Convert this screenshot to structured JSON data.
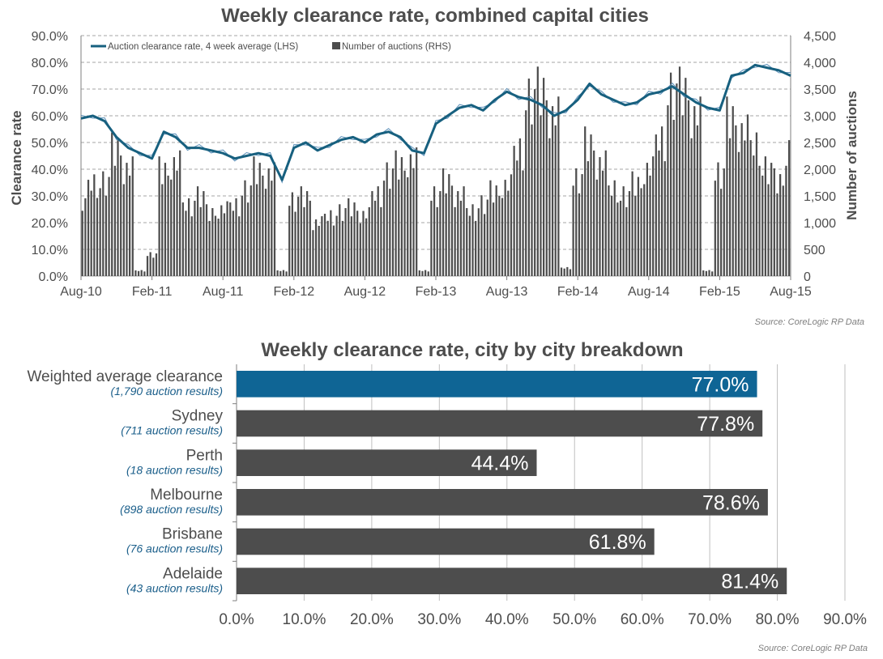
{
  "colors": {
    "line": "#17607f",
    "line_thin": "#5b8fb8",
    "bars": "#4d4d4d",
    "highlight": "#0f6595",
    "grid": "#a6a6a6",
    "subtitle": "#1a5e8a"
  },
  "chart_data": [
    {
      "type": "line",
      "title": "Weekly clearance rate, combined capital cities",
      "ylabel": "Clearance rate",
      "y2label": "Number of auctions",
      "x_ticks": [
        "Aug-10",
        "Feb-11",
        "Aug-11",
        "Feb-12",
        "Aug-12",
        "Feb-13",
        "Aug-13",
        "Feb-14",
        "Aug-14",
        "Feb-15",
        "Aug-15"
      ],
      "y_ticks": [
        "0.0%",
        "10.0%",
        "20.0%",
        "30.0%",
        "40.0%",
        "50.0%",
        "60.0%",
        "70.0%",
        "80.0%",
        "90.0%"
      ],
      "y2_ticks": [
        "0",
        "500",
        "1,000",
        "1,500",
        "2,000",
        "2,500",
        "3,000",
        "3,500",
        "4,000",
        "4,500"
      ],
      "ylim": [
        0,
        90
      ],
      "y2lim": [
        0,
        4500
      ],
      "grid": true,
      "legend_position": "top-left",
      "series": [
        {
          "name": "Auction clearance rate, 4 week average (LHS)",
          "axis": "left",
          "kind": "line",
          "points": [
            [
              "Aug-10",
              59
            ],
            [
              "Sep-10",
              60
            ],
            [
              "Oct-10",
              58
            ],
            [
              "Nov-10",
              52
            ],
            [
              "Dec-10",
              48
            ],
            [
              "Jan-11",
              46
            ],
            [
              "Feb-11",
              44
            ],
            [
              "Mar-11",
              54
            ],
            [
              "Apr-11",
              52
            ],
            [
              "May-11",
              48
            ],
            [
              "Jun-11",
              48
            ],
            [
              "Jul-11",
              47
            ],
            [
              "Aug-11",
              46
            ],
            [
              "Sep-11",
              44
            ],
            [
              "Oct-11",
              45
            ],
            [
              "Nov-11",
              46
            ],
            [
              "Dec-11",
              45
            ],
            [
              "Jan-12",
              36
            ],
            [
              "Feb-12",
              48
            ],
            [
              "Mar-12",
              50
            ],
            [
              "Apr-12",
              47
            ],
            [
              "May-12",
              49
            ],
            [
              "Jun-12",
              51
            ],
            [
              "Jul-12",
              52
            ],
            [
              "Aug-12",
              50
            ],
            [
              "Sep-12",
              53
            ],
            [
              "Oct-12",
              54
            ],
            [
              "Nov-12",
              52
            ],
            [
              "Dec-12",
              47
            ],
            [
              "Jan-13",
              46
            ],
            [
              "Feb-13",
              57
            ],
            [
              "Mar-13",
              60
            ],
            [
              "Apr-13",
              63
            ],
            [
              "May-13",
              64
            ],
            [
              "Jun-13",
              62
            ],
            [
              "Jul-13",
              66
            ],
            [
              "Aug-13",
              69
            ],
            [
              "Sep-13",
              67
            ],
            [
              "Oct-13",
              66
            ],
            [
              "Nov-13",
              64
            ],
            [
              "Dec-13",
              60
            ],
            [
              "Jan-14",
              62
            ],
            [
              "Feb-14",
              66
            ],
            [
              "Mar-14",
              72
            ],
            [
              "Apr-14",
              68
            ],
            [
              "May-14",
              66
            ],
            [
              "Jun-14",
              64
            ],
            [
              "Jul-14",
              65
            ],
            [
              "Aug-14",
              68
            ],
            [
              "Sep-14",
              69
            ],
            [
              "Oct-14",
              71
            ],
            [
              "Nov-14",
              68
            ],
            [
              "Dec-14",
              65
            ],
            [
              "Jan-15",
              63
            ],
            [
              "Feb-15",
              62
            ],
            [
              "Mar-15",
              75
            ],
            [
              "Apr-15",
              76
            ],
            [
              "May-15",
              79
            ],
            [
              "Jun-15",
              78
            ],
            [
              "Jul-15",
              77
            ],
            [
              "Aug-15",
              75
            ]
          ]
        },
        {
          "name": "Number of auctions (RHS)",
          "axis": "right",
          "kind": "bar",
          "points": [
            [
              "Aug-10",
              1300
            ],
            [
              "Sep-10",
              1700
            ],
            [
              "Oct-10",
              1750
            ],
            [
              "Nov-10",
              2400
            ],
            [
              "Dec-10",
              2000
            ],
            [
              "Jan-11",
              100
            ],
            [
              "Feb-11",
              400
            ],
            [
              "Mar-11",
              2000
            ],
            [
              "Apr-11",
              2100
            ],
            [
              "May-11",
              1300
            ],
            [
              "Jun-11",
              1500
            ],
            [
              "Jul-11",
              1200
            ],
            [
              "Aug-11",
              1250
            ],
            [
              "Sep-11",
              1300
            ],
            [
              "Oct-11",
              1600
            ],
            [
              "Nov-11",
              2000
            ],
            [
              "Dec-11",
              1900
            ],
            [
              "Jan-12",
              100
            ],
            [
              "Feb-12",
              1400
            ],
            [
              "Mar-12",
              1500
            ],
            [
              "Apr-12",
              1000
            ],
            [
              "May-12",
              1100
            ],
            [
              "Jun-12",
              1200
            ],
            [
              "Jul-12",
              1300
            ],
            [
              "Aug-12",
              1150
            ],
            [
              "Sep-12",
              1500
            ],
            [
              "Oct-12",
              1900
            ],
            [
              "Nov-12",
              2100
            ],
            [
              "Dec-12",
              2150
            ],
            [
              "Jan-13",
              100
            ],
            [
              "Feb-13",
              1500
            ],
            [
              "Mar-13",
              1800
            ],
            [
              "Apr-13",
              1500
            ],
            [
              "May-13",
              1200
            ],
            [
              "Jun-13",
              1350
            ],
            [
              "Jul-13",
              1600
            ],
            [
              "Aug-13",
              1700
            ],
            [
              "Sep-13",
              2300
            ],
            [
              "Oct-13",
              3300
            ],
            [
              "Nov-13",
              3500
            ],
            [
              "Dec-13",
              3000
            ],
            [
              "Jan-14",
              150
            ],
            [
              "Feb-14",
              1800
            ],
            [
              "Mar-14",
              2500
            ],
            [
              "Apr-14",
              2100
            ],
            [
              "May-14",
              1600
            ],
            [
              "Jun-14",
              1500
            ],
            [
              "Jul-14",
              1750
            ],
            [
              "Aug-14",
              2000
            ],
            [
              "Sep-14",
              2500
            ],
            [
              "Oct-14",
              3400
            ],
            [
              "Nov-14",
              3500
            ],
            [
              "Dec-14",
              3000
            ],
            [
              "Jan-15",
              100
            ],
            [
              "Feb-15",
              1900
            ],
            [
              "Mar-15",
              3000
            ],
            [
              "Apr-15",
              2700
            ],
            [
              "May-15",
              2400
            ],
            [
              "Jun-15",
              2000
            ],
            [
              "Jul-15",
              1800
            ],
            [
              "Aug-15",
              2400
            ]
          ]
        }
      ],
      "source": "Source: CoreLogic RP Data"
    },
    {
      "type": "bar",
      "orientation": "horizontal",
      "title": "Weekly clearance rate, city by city breakdown",
      "categories": [
        "Weighted average clearance",
        "Sydney",
        "Perth",
        "Melbourne",
        "Brisbane",
        "Adelaide"
      ],
      "sublabels": [
        "(1,790 auction results)",
        "(711 auction results)",
        "(18 auction results)",
        "(898 auction results)",
        "(76 auction results)",
        "(43 auction results)"
      ],
      "values": [
        77.0,
        77.8,
        44.4,
        78.6,
        61.8,
        81.4
      ],
      "value_labels": [
        "77.0%",
        "77.8%",
        "44.4%",
        "78.6%",
        "61.8%",
        "81.4%"
      ],
      "highlight_index": 0,
      "x_ticks": [
        "0.0%",
        "10.0%",
        "20.0%",
        "30.0%",
        "40.0%",
        "50.0%",
        "60.0%",
        "70.0%",
        "80.0%",
        "90.0%"
      ],
      "xlim": [
        0,
        90
      ],
      "grid": true,
      "source": "Source: CoreLogic RP Data"
    }
  ]
}
